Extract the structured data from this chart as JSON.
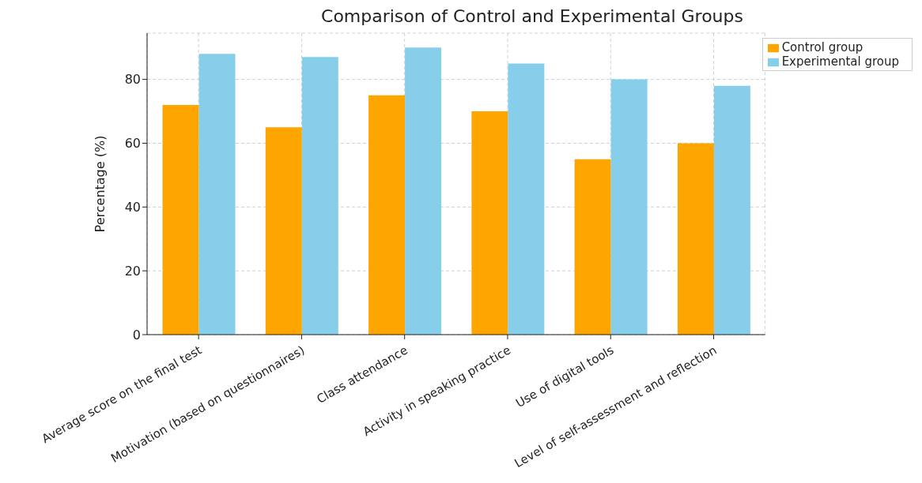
{
  "chart_data": {
    "type": "bar",
    "title": "Comparison of Control and Experimental Groups",
    "ylabel": "Percentage (%)",
    "categories": [
      "Average score on the final test",
      "Motivation (based on questionnaires)",
      "Class attendance",
      "Activity in speaking practice",
      "Use of digital tools",
      "Level of self-assessment and reflection"
    ],
    "series": [
      {
        "name": "Control group",
        "color": "#ffa500",
        "values": [
          72,
          65,
          75,
          70,
          55,
          60
        ]
      },
      {
        "name": "Experimental group",
        "color": "#87ceeb",
        "values": [
          88,
          87,
          90,
          85,
          80,
          78
        ]
      }
    ],
    "ylim": [
      0,
      94.5
    ],
    "yticks": [
      0,
      20,
      40,
      60,
      80
    ],
    "grid": true,
    "legend": "top right"
  }
}
